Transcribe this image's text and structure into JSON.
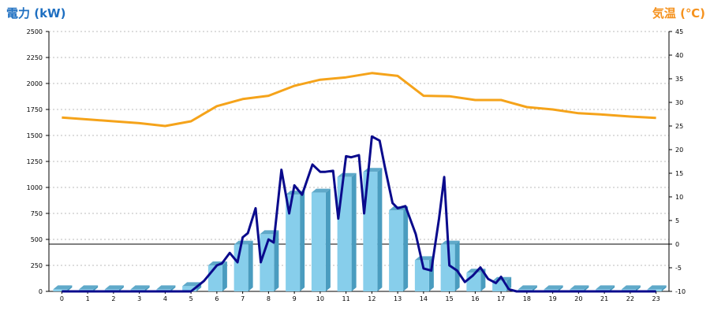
{
  "chart_data": {
    "type": "bar+line",
    "left_axis": {
      "label": "電力 (kW)",
      "color": "#1e6fc1",
      "ylim": [
        0,
        2500
      ],
      "ticks": [
        0,
        250,
        500,
        750,
        1000,
        1250,
        1500,
        1750,
        2000,
        2250,
        2500
      ]
    },
    "right_axis": {
      "label": "気温 (℃)",
      "color": "#f5921e",
      "ylim": [
        -10,
        45
      ],
      "ticks": [
        -10,
        -5,
        0,
        5,
        10,
        15,
        20,
        25,
        30,
        35,
        40,
        45
      ]
    },
    "categories": [
      "0",
      "1",
      "2",
      "3",
      "4",
      "5",
      "6",
      "7",
      "8",
      "9",
      "10",
      "11",
      "12",
      "13",
      "14",
      "15",
      "16",
      "17",
      "18",
      "19",
      "20",
      "21",
      "22",
      "23"
    ],
    "grid": "horizontal dotted",
    "series": [
      {
        "type": "bar",
        "axis": "left",
        "color": "#87ceeb",
        "values": [
          20,
          20,
          20,
          20,
          20,
          50,
          250,
          450,
          550,
          930,
          950,
          1100,
          1150,
          780,
          300,
          450,
          180,
          100,
          20,
          20,
          20,
          20,
          20,
          20
        ]
      },
      {
        "type": "line",
        "axis": "left",
        "color": "#0a0a8c",
        "x": [
          0,
          1,
          2,
          3,
          4,
          5,
          5.5,
          6,
          6.2,
          6.5,
          6.8,
          7,
          7.2,
          7.5,
          7.7,
          8,
          8.2,
          8.5,
          8.8,
          9,
          9.3,
          9.7,
          10,
          10.2,
          10.5,
          10.7,
          11,
          11.2,
          11.5,
          11.7,
          12,
          12.3,
          12.5,
          12.8,
          13,
          13.3,
          13.7,
          14,
          14.3,
          14.6,
          14.8,
          15,
          15.3,
          15.6,
          15.9,
          16.2,
          16.5,
          16.8,
          17,
          17.3,
          17.6,
          18,
          19,
          20,
          21,
          22,
          23
        ],
        "values": [
          0,
          0,
          0,
          0,
          0,
          0,
          100,
          250,
          270,
          370,
          280,
          520,
          560,
          800,
          280,
          500,
          470,
          1170,
          750,
          1020,
          930,
          1220,
          1150,
          1150,
          1160,
          700,
          1300,
          1290,
          1310,
          750,
          1490,
          1450,
          1200,
          850,
          800,
          820,
          550,
          220,
          200,
          700,
          1100,
          250,
          200,
          90,
          150,
          230,
          120,
          80,
          140,
          20,
          0,
          0,
          0,
          0,
          0,
          0,
          0
        ]
      },
      {
        "type": "line",
        "axis": "right",
        "color": "#f5a31a",
        "x": [
          0,
          1,
          2,
          3,
          4,
          5,
          6,
          7,
          8,
          9,
          10,
          11,
          12,
          13,
          14,
          15,
          16,
          17,
          18,
          19,
          20,
          21,
          22,
          23
        ],
        "values": [
          26.8,
          26.4,
          26.0,
          25.6,
          25.0,
          26.0,
          29.2,
          30.7,
          31.4,
          33.5,
          34.8,
          35.3,
          36.2,
          35.6,
          31.4,
          31.3,
          30.5,
          30.5,
          29.0,
          28.5,
          27.7,
          27.4,
          27.0,
          26.7
        ]
      }
    ]
  }
}
